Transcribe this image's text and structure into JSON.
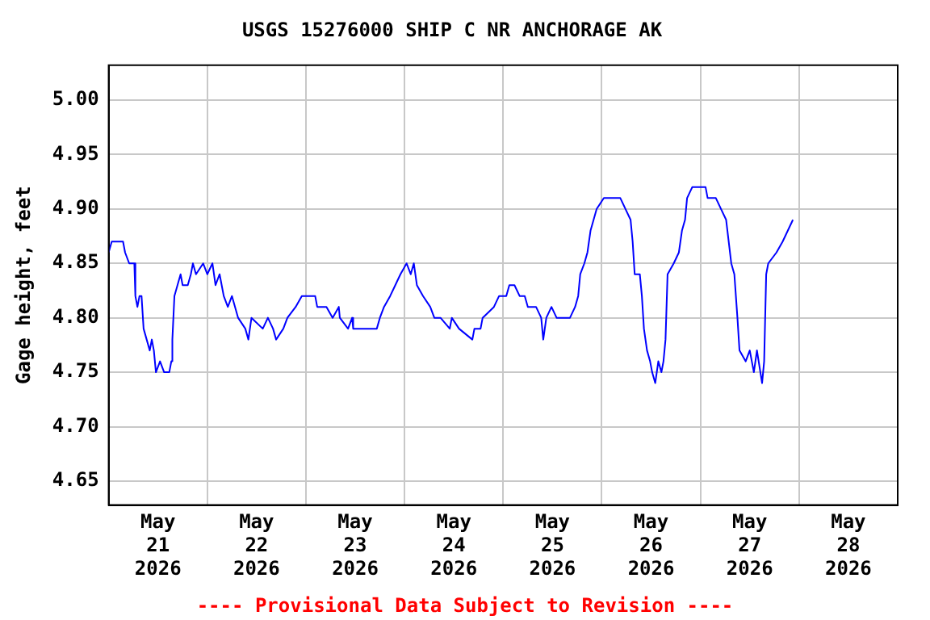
{
  "chart_data": {
    "type": "line",
    "title": "USGS 15276000 SHIP C NR ANCHORAGE AK",
    "ylabel": "Gage height, feet",
    "annotations": [
      "---- Provisional Data Subject to Revision ----"
    ],
    "x": [
      "2026-05-21T00:00",
      "2026-05-21T00:45",
      "2026-05-21T03:30",
      "2026-05-21T04:00",
      "2026-05-21T05:00",
      "2026-05-21T06:15",
      "2026-05-21T06:30",
      "2026-05-21T07:00",
      "2026-05-21T07:30",
      "2026-05-21T08:00",
      "2026-05-21T08:30",
      "2026-05-21T09:15",
      "2026-05-21T10:00",
      "2026-05-21T10:30",
      "2026-05-21T11:00",
      "2026-05-21T11:30",
      "2026-05-21T12:30",
      "2026-05-21T13:30",
      "2026-05-21T14:45",
      "2026-05-21T15:15",
      "2026-05-21T15:30",
      "2026-05-21T16:00",
      "2026-05-21T16:45",
      "2026-05-21T17:30",
      "2026-05-21T18:00",
      "2026-05-21T19:15",
      "2026-05-21T20:00",
      "2026-05-21T20:30",
      "2026-05-21T21:15",
      "2026-05-21T23:00",
      "2026-05-22T00:00",
      "2026-05-22T01:15",
      "2026-05-22T02:00",
      "2026-05-22T03:00",
      "2026-05-22T04:00",
      "2026-05-22T05:00",
      "2026-05-22T06:00",
      "2026-05-22T07:30",
      "2026-05-22T09:15",
      "2026-05-22T10:00",
      "2026-05-22T10:45",
      "2026-05-22T13:30",
      "2026-05-22T14:45",
      "2026-05-22T16:00",
      "2026-05-22T16:45",
      "2026-05-22T18:30",
      "2026-05-22T19:30",
      "2026-05-22T21:30",
      "2026-05-22T23:00",
      "2026-05-23T02:15",
      "2026-05-23T02:45",
      "2026-05-23T05:00",
      "2026-05-23T06:30",
      "2026-05-23T08:00",
      "2026-05-23T08:15",
      "2026-05-23T10:15",
      "2026-05-23T11:15",
      "2026-05-23T11:30",
      "2026-05-23T17:15",
      "2026-05-23T18:00",
      "2026-05-23T19:00",
      "2026-05-23T20:30",
      "2026-05-23T21:45",
      "2026-05-23T23:00",
      "2026-05-24T00:30",
      "2026-05-24T01:30",
      "2026-05-24T02:15",
      "2026-05-24T03:00",
      "2026-05-24T04:30",
      "2026-05-24T06:15",
      "2026-05-24T07:15",
      "2026-05-24T08:45",
      "2026-05-24T11:00",
      "2026-05-24T11:30",
      "2026-05-24T13:15",
      "2026-05-24T16:30",
      "2026-05-24T17:00",
      "2026-05-24T18:30",
      "2026-05-24T19:00",
      "2026-05-24T21:45",
      "2026-05-24T23:00",
      "2026-05-25T00:45",
      "2026-05-25T01:30",
      "2026-05-25T02:45",
      "2026-05-25T04:00",
      "2026-05-25T05:15",
      "2026-05-25T06:00",
      "2026-05-25T08:00",
      "2026-05-25T09:15",
      "2026-05-25T09:45",
      "2026-05-25T10:30",
      "2026-05-25T11:45",
      "2026-05-25T13:00",
      "2026-05-25T16:15",
      "2026-05-25T17:30",
      "2026-05-25T18:15",
      "2026-05-25T18:45",
      "2026-05-25T19:45",
      "2026-05-25T20:30",
      "2026-05-25T21:15",
      "2026-05-25T22:00",
      "2026-05-25T22:45",
      "2026-05-26T00:30",
      "2026-05-26T04:30",
      "2026-05-26T05:45",
      "2026-05-26T07:00",
      "2026-05-26T07:30",
      "2026-05-26T08:00",
      "2026-05-26T09:15",
      "2026-05-26T09:45",
      "2026-05-26T10:15",
      "2026-05-26T11:00",
      "2026-05-26T11:45",
      "2026-05-26T12:15",
      "2026-05-26T13:00",
      "2026-05-26T13:45",
      "2026-05-26T14:30",
      "2026-05-26T15:00",
      "2026-05-26T15:30",
      "2026-05-26T16:00",
      "2026-05-26T17:30",
      "2026-05-26T18:45",
      "2026-05-26T19:30",
      "2026-05-26T20:15",
      "2026-05-26T20:45",
      "2026-05-26T22:00",
      "2026-05-27T01:15",
      "2026-05-27T01:45",
      "2026-05-27T03:45",
      "2026-05-27T05:00",
      "2026-05-27T06:15",
      "2026-05-27T07:30",
      "2026-05-27T08:15",
      "2026-05-27T09:00",
      "2026-05-27T09:30",
      "2026-05-27T11:00",
      "2026-05-27T12:00",
      "2026-05-27T13:00",
      "2026-05-27T13:45",
      "2026-05-27T15:00",
      "2026-05-27T15:30",
      "2026-05-27T16:00",
      "2026-05-27T16:30",
      "2026-05-27T18:30",
      "2026-05-27T20:00",
      "2026-05-27T21:15",
      "2026-05-27T22:30"
    ],
    "series": [
      {
        "color": "#0000ff",
        "values": [
          4.86,
          4.87,
          4.87,
          4.86,
          4.85,
          4.85,
          4.82,
          4.81,
          4.82,
          4.82,
          4.79,
          4.78,
          4.77,
          4.78,
          4.77,
          4.75,
          4.76,
          4.75,
          4.75,
          4.76,
          4.78,
          4.82,
          4.83,
          4.84,
          4.83,
          4.83,
          4.84,
          4.85,
          4.84,
          4.85,
          4.84,
          4.85,
          4.83,
          4.84,
          4.82,
          4.81,
          4.82,
          4.8,
          4.79,
          4.78,
          4.8,
          4.79,
          4.8,
          4.79,
          4.78,
          4.79,
          4.8,
          4.81,
          4.82,
          4.82,
          4.81,
          4.81,
          4.8,
          4.81,
          4.8,
          4.79,
          4.8,
          4.79,
          4.79,
          4.8,
          4.81,
          4.82,
          4.83,
          4.84,
          4.85,
          4.84,
          4.85,
          4.83,
          4.82,
          4.81,
          4.8,
          4.8,
          4.79,
          4.8,
          4.79,
          4.78,
          4.79,
          4.79,
          4.8,
          4.81,
          4.82,
          4.82,
          4.83,
          4.83,
          4.82,
          4.82,
          4.81,
          4.81,
          4.8,
          4.78,
          4.8,
          4.81,
          4.8,
          4.8,
          4.81,
          4.82,
          4.84,
          4.85,
          4.86,
          4.88,
          4.89,
          4.9,
          4.91,
          4.91,
          4.9,
          4.89,
          4.87,
          4.84,
          4.84,
          4.82,
          4.79,
          4.77,
          4.76,
          4.75,
          4.74,
          4.76,
          4.75,
          4.76,
          4.78,
          4.84,
          4.85,
          4.86,
          4.88,
          4.89,
          4.91,
          4.92,
          4.92,
          4.91,
          4.91,
          4.9,
          4.89,
          4.85,
          4.84,
          4.8,
          4.77,
          4.76,
          4.77,
          4.75,
          4.77,
          4.74,
          4.76,
          4.84,
          4.85,
          4.86,
          4.87,
          4.88,
          4.89
        ]
      }
    ],
    "xlim": [
      "2026-05-21T00:00",
      "2026-05-29T00:00"
    ],
    "xticks": [
      {
        "value": "2026-05-21T12:00",
        "label": "May\n21\n2026"
      },
      {
        "value": "2026-05-22T00:00",
        "label": null
      },
      {
        "value": "2026-05-22T12:00",
        "label": "May\n22\n2026"
      },
      {
        "value": "2026-05-23T00:00",
        "label": null
      },
      {
        "value": "2026-05-23T12:00",
        "label": "May\n23\n2026"
      },
      {
        "value": "2026-05-24T00:00",
        "label": null
      },
      {
        "value": "2026-05-24T12:00",
        "label": "May\n24\n2026"
      },
      {
        "value": "2026-05-25T00:00",
        "label": null
      },
      {
        "value": "2026-05-25T12:00",
        "label": "May\n25\n2026"
      },
      {
        "value": "2026-05-26T00:00",
        "label": null
      },
      {
        "value": "2026-05-26T12:00",
        "label": "May\n26\n2026"
      },
      {
        "value": "2026-05-27T00:00",
        "label": null
      },
      {
        "value": "2026-05-27T12:00",
        "label": "May\n27\n2026"
      },
      {
        "value": "2026-05-28T00:00",
        "label": null
      },
      {
        "value": "2026-05-28T12:00",
        "label": "May\n28\n2026"
      }
    ],
    "ylim": [
      4.628,
      5.032
    ],
    "yticks": [
      {
        "value": 4.65,
        "label": "4.65"
      },
      {
        "value": 4.7,
        "label": "4.70"
      },
      {
        "value": 4.75,
        "label": "4.75"
      },
      {
        "value": 4.8,
        "label": "4.80"
      },
      {
        "value": 4.85,
        "label": "4.85"
      },
      {
        "value": 4.9,
        "label": "4.90"
      },
      {
        "value": 4.95,
        "label": "4.95"
      },
      {
        "value": 5,
        "label": "5.00"
      }
    ],
    "grid": true,
    "legend": false,
    "marker": "none",
    "line_style": "solid"
  }
}
